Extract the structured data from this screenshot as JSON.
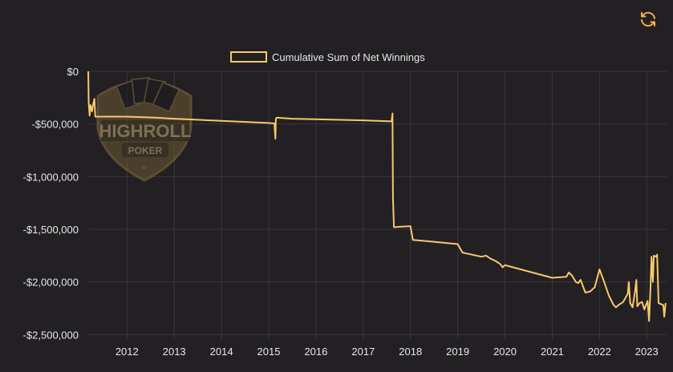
{
  "chart_data": {
    "type": "line",
    "title": "",
    "xlabel": "",
    "ylabel": "",
    "legend_position": "top-center",
    "grid": true,
    "xlim": [
      2011.18,
      2023.42
    ],
    "ylim": [
      -2550000,
      0
    ],
    "x_ticks": [
      2012,
      2013,
      2014,
      2015,
      2016,
      2017,
      2018,
      2019,
      2020,
      2021,
      2022,
      2023
    ],
    "x_tick_labels": [
      "2012",
      "2013",
      "2014",
      "2015",
      "2016",
      "2017",
      "2018",
      "2019",
      "2020",
      "2021",
      "2022",
      "2023"
    ],
    "y_ticks": [
      0,
      -500000,
      -1000000,
      -1500000,
      -2000000,
      -2500000
    ],
    "y_tick_labels": [
      "$0",
      "-$500,000",
      "-$1,000,000",
      "-$1,500,000",
      "-$2,000,000",
      "-$2,500,000"
    ],
    "series": [
      {
        "name": "Cumulative Sum of Net Winnings",
        "color": "#f6c96a",
        "x": [
          2011.18,
          2011.19,
          2011.21,
          2011.23,
          2011.26,
          2011.29,
          2011.31,
          2011.33,
          2012.0,
          2012.6,
          2013.0,
          2014.0,
          2015.0,
          2015.12,
          2015.14,
          2015.15,
          2015.17,
          2015.5,
          2016.0,
          2017.0,
          2017.6,
          2017.62,
          2017.63,
          2017.65,
          2017.8,
          2018.0,
          2018.05,
          2018.3,
          2019.0,
          2019.1,
          2019.2,
          2019.5,
          2019.6,
          2019.7,
          2019.8,
          2019.9,
          2019.95,
          2020.0,
          2020.5,
          2021.0,
          2021.3,
          2021.35,
          2021.42,
          2021.5,
          2021.55,
          2021.6,
          2021.7,
          2021.8,
          2021.9,
          2022.0,
          2022.1,
          2022.2,
          2022.3,
          2022.35,
          2022.4,
          2022.5,
          2022.6,
          2022.62,
          2022.65,
          2022.7,
          2022.75,
          2022.78,
          2022.8,
          2022.85,
          2022.9,
          2022.95,
          2023.0,
          2023.02,
          2023.05,
          2023.08,
          2023.1,
          2023.13,
          2023.15,
          2023.2,
          2023.22,
          2023.25,
          2023.3,
          2023.35,
          2023.37,
          2023.4
        ],
        "values": [
          0,
          -300000,
          -420000,
          -320000,
          -380000,
          -300000,
          -260000,
          -430000,
          -430000,
          -440000,
          -450000,
          -470000,
          -490000,
          -495000,
          -640000,
          -450000,
          -440000,
          -450000,
          -455000,
          -465000,
          -475000,
          -400000,
          -1200000,
          -1480000,
          -1475000,
          -1470000,
          -1600000,
          -1610000,
          -1640000,
          -1720000,
          -1730000,
          -1760000,
          -1750000,
          -1780000,
          -1800000,
          -1830000,
          -1860000,
          -1840000,
          -1900000,
          -1960000,
          -1950000,
          -1910000,
          -1940000,
          -2000000,
          -2010000,
          -1980000,
          -2100000,
          -2090000,
          -2050000,
          -1880000,
          -2000000,
          -2130000,
          -2220000,
          -2240000,
          -2220000,
          -2190000,
          -2110000,
          -2000000,
          -2200000,
          -2240000,
          -2100000,
          -1980000,
          -2230000,
          -2200000,
          -2190000,
          -2260000,
          -2200000,
          -2180000,
          -2370000,
          -2050000,
          -1760000,
          -2000000,
          -1750000,
          -1760000,
          -1740000,
          -2200000,
          -2210000,
          -2220000,
          -2330000,
          -2200000
        ]
      }
    ]
  },
  "watermark": {
    "brand": "HIGHROLL",
    "sub": "POKER"
  },
  "toolbar": {
    "refresh_icon": "refresh-icon"
  }
}
